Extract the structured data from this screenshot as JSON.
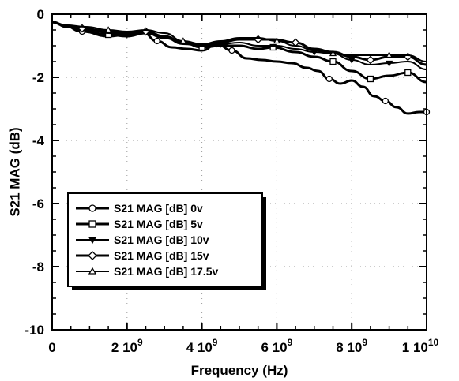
{
  "chart_data": {
    "type": "line",
    "xlabel": "Frequency (Hz)",
    "ylabel": "S21 MAG (dB)",
    "xlim": [
      0,
      10000000000
    ],
    "ylim": [
      -10,
      0
    ],
    "x_ticks": [
      {
        "value": 0,
        "mantissa": "0",
        "exponent": ""
      },
      {
        "value": 2000000000,
        "mantissa": "2 10",
        "exponent": "9"
      },
      {
        "value": 4000000000,
        "mantissa": "4 10",
        "exponent": "9"
      },
      {
        "value": 6000000000,
        "mantissa": "6 10",
        "exponent": "9"
      },
      {
        "value": 8000000000,
        "mantissa": "8 10",
        "exponent": "9"
      },
      {
        "value": 10000000000,
        "mantissa": "1 10",
        "exponent": "10"
      }
    ],
    "y_ticks": [
      {
        "value": 0,
        "label": "0"
      },
      {
        "value": -2,
        "label": "-2"
      },
      {
        "value": -4,
        "label": "-4"
      },
      {
        "value": -6,
        "label": "-6"
      },
      {
        "value": -8,
        "label": "-8"
      },
      {
        "value": -10,
        "label": "-10"
      }
    ],
    "grid": "dotted",
    "legend_position": "lower-left",
    "series": [
      {
        "name": "S21 MAG [dB] 0v",
        "marker": "circle",
        "stroke_width": 3,
        "x": [
          0,
          300000000,
          800000000,
          1500000000,
          2000000000,
          2400000000,
          2800000000,
          3200000000,
          3600000000,
          4000000000,
          4400000000,
          4800000000,
          5200000000,
          5600000000,
          6000000000,
          6400000000,
          6800000000,
          7100000000,
          7400000000,
          7700000000,
          8000000000,
          8300000000,
          8600000000,
          8900000000,
          9200000000,
          9500000000,
          9800000000,
          10000000000
        ],
        "y": [
          -0.25,
          -0.35,
          -0.55,
          -0.7,
          -0.65,
          -0.55,
          -0.85,
          -1.05,
          -1.1,
          -1.15,
          -0.95,
          -1.15,
          -1.4,
          -1.45,
          -1.5,
          -1.55,
          -1.7,
          -1.8,
          -2.05,
          -2.2,
          -2.1,
          -2.3,
          -2.6,
          -2.75,
          -2.95,
          -3.15,
          -3.1,
          -3.1
        ]
      },
      {
        "name": "S21 MAG [dB] 5v",
        "marker": "square",
        "stroke_width": 3,
        "x": [
          0,
          400000000,
          800000000,
          1500000000,
          2000000000,
          2500000000,
          3000000000,
          3500000000,
          4000000000,
          4500000000,
          5000000000,
          5500000000,
          5900000000,
          6500000000,
          7000000000,
          7500000000,
          8000000000,
          8500000000,
          9000000000,
          9500000000,
          10000000000
        ],
        "y": [
          -0.25,
          -0.4,
          -0.5,
          -0.65,
          -0.7,
          -0.6,
          -0.75,
          -0.9,
          -1.05,
          -1.0,
          -1.0,
          -1.1,
          -1.05,
          -1.2,
          -1.35,
          -1.5,
          -1.8,
          -2.05,
          -1.95,
          -1.85,
          -2.15
        ]
      },
      {
        "name": "S21 MAG [dB] 10v",
        "marker": "triangle-down",
        "stroke_width": 2,
        "x": [
          0,
          400000000,
          900000000,
          1500000000,
          2000000000,
          2500000000,
          3000000000,
          3500000000,
          4000000000,
          4500000000,
          5000000000,
          5500000000,
          6000000000,
          6500000000,
          7000000000,
          7500000000,
          8000000000,
          8500000000,
          9000000000,
          9500000000,
          10000000000
        ],
        "y": [
          -0.25,
          -0.35,
          -0.45,
          -0.6,
          -0.65,
          -0.55,
          -0.75,
          -0.95,
          -1.0,
          -0.95,
          -0.9,
          -1.0,
          -1.0,
          -1.1,
          -1.2,
          -1.25,
          -1.45,
          -1.6,
          -1.55,
          -1.5,
          -1.75
        ]
      },
      {
        "name": "S21 MAG [dB] 15v",
        "marker": "diamond",
        "stroke_width": 3,
        "x": [
          0,
          400000000,
          800000000,
          1500000000,
          2000000000,
          2500000000,
          3000000000,
          3500000000,
          4000000000,
          4500000000,
          5000000000,
          5500000000,
          5900000000,
          6500000000,
          7000000000,
          7500000000,
          8000000000,
          8500000000,
          9000000000,
          9500000000,
          10000000000
        ],
        "y": [
          -0.25,
          -0.4,
          -0.45,
          -0.55,
          -0.6,
          -0.55,
          -0.7,
          -0.9,
          -1.0,
          -0.9,
          -0.8,
          -0.8,
          -0.8,
          -0.9,
          -1.1,
          -1.2,
          -1.35,
          -1.45,
          -1.35,
          -1.35,
          -1.6
        ]
      },
      {
        "name": "S21 MAG [dB] 17.5v",
        "marker": "triangle-up",
        "stroke_width": 2,
        "x": [
          0,
          400000000,
          900000000,
          1500000000,
          2000000000,
          2500000000,
          3000000000,
          3500000000,
          4000000000,
          4500000000,
          5000000000,
          5500000000,
          6000000000,
          6500000000,
          7000000000,
          7500000000,
          8000000000,
          8500000000,
          9000000000,
          9500000000,
          10000000000
        ],
        "y": [
          -0.25,
          -0.35,
          -0.4,
          -0.5,
          -0.55,
          -0.5,
          -0.6,
          -0.85,
          -0.95,
          -0.85,
          -0.75,
          -0.75,
          -0.85,
          -1.0,
          -1.15,
          -1.25,
          -1.3,
          -1.3,
          -1.3,
          -1.3,
          -1.5
        ]
      }
    ]
  }
}
